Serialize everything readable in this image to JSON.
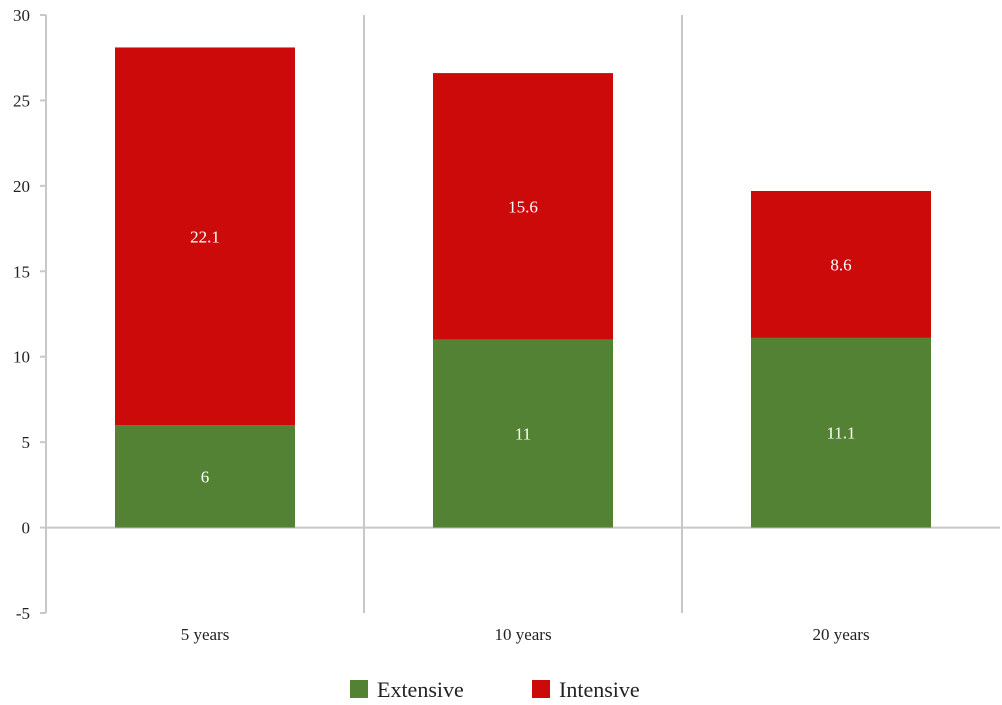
{
  "chart_data": {
    "type": "bar",
    "stacked": true,
    "categories": [
      "5 years",
      "10 years",
      "20 years"
    ],
    "series": [
      {
        "name": "Extensive",
        "values": [
          6,
          11,
          11.1
        ],
        "color": "#548235"
      },
      {
        "name": "Intensive",
        "values": [
          22.1,
          15.6,
          8.6
        ],
        "color": "#cc0a0a"
      }
    ],
    "data_labels": [
      [
        "6",
        "11",
        "11.1"
      ],
      [
        "22.1",
        "15.6",
        "8.6"
      ]
    ],
    "ylim": [
      -5,
      30
    ],
    "yticks": [
      30,
      25,
      20,
      15,
      10,
      5,
      0,
      -5
    ],
    "ytick_labels": [
      "30",
      "25",
      "20",
      "15",
      "10",
      "5",
      "0",
      "-5"
    ],
    "grid": "vertical category separators",
    "legend_position": "bottom-center",
    "title": "",
    "xlabel": "",
    "ylabel": ""
  },
  "colors": {
    "axis": "#c8c8c8",
    "text": "#222222",
    "label_on_bar": "#ffffff"
  }
}
